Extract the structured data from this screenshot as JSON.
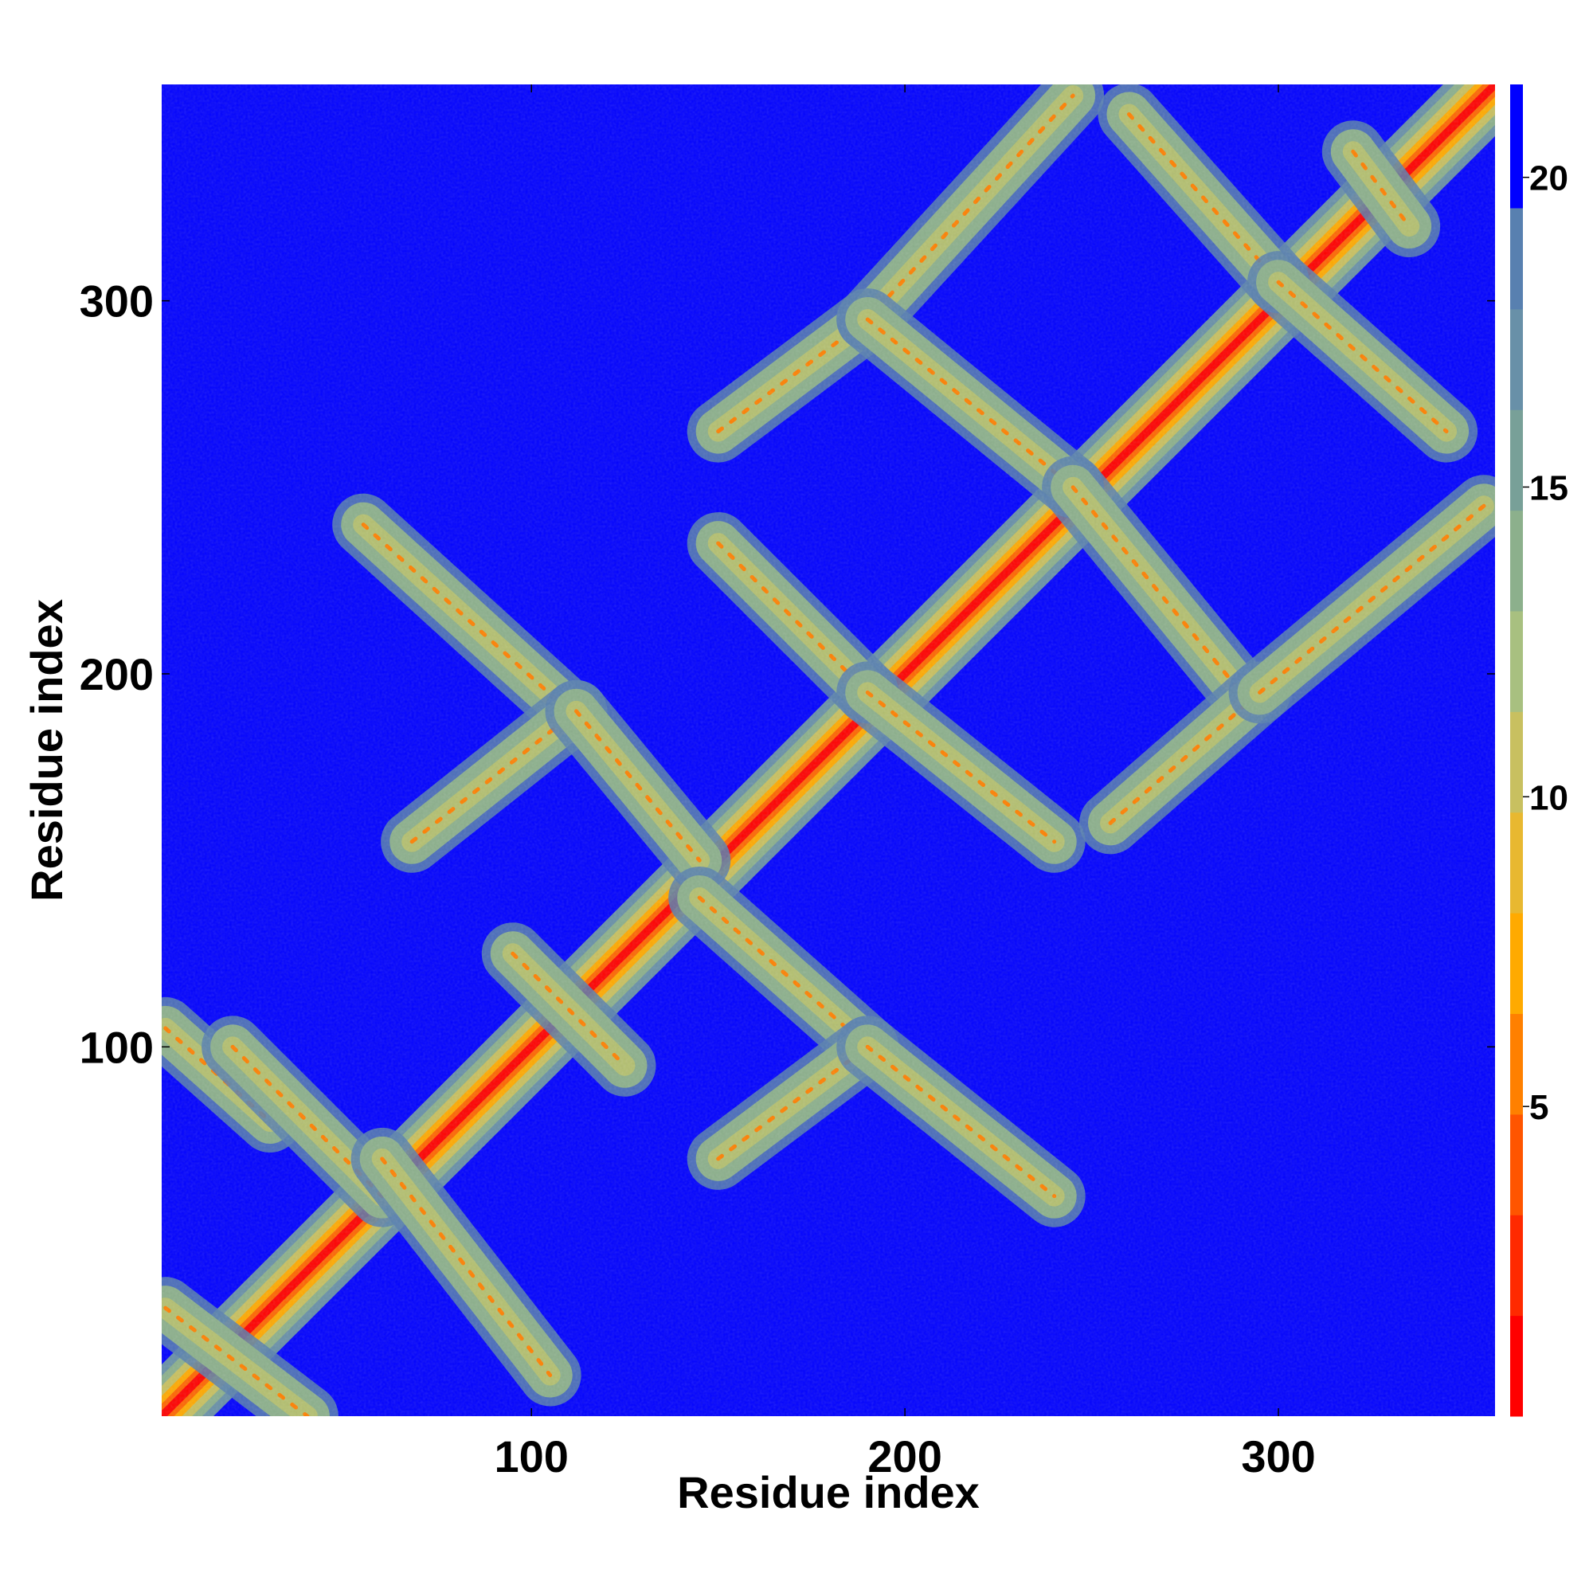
{
  "chart_data": {
    "type": "heatmap",
    "title": "",
    "xlabel": "Residue index",
    "ylabel": "Residue index",
    "xlim": [
      1,
      358
    ],
    "ylim": [
      1,
      358
    ],
    "x_ticks": [
      "100",
      "200",
      "300"
    ],
    "y_ticks": [
      "100",
      "200",
      "300"
    ],
    "colorbar": {
      "range": [
        0,
        21.5
      ],
      "ticks": [
        "5",
        "10",
        "15",
        "20"
      ],
      "colors": [
        "#ff0000",
        "#ff2a00",
        "#ff5500",
        "#ff8000",
        "#ffaa00",
        "#e8b830",
        "#c8c060",
        "#a8c080",
        "#8cb08c",
        "#78a098",
        "#6890a8",
        "#5880b0",
        "#0000ff"
      ]
    },
    "features": [
      {
        "kind": "diagonal",
        "from": [
          1,
          1
        ],
        "to": [
          358,
          358
        ]
      },
      {
        "kind": "anti-band",
        "from": [
          2,
          30
        ],
        "to": [
          40,
          1
        ]
      },
      {
        "kind": "band",
        "from": [
          2,
          105
        ],
        "to": [
          30,
          80
        ]
      },
      {
        "kind": "anti-band",
        "from": [
          20,
          100
        ],
        "to": [
          60,
          60
        ]
      },
      {
        "kind": "anti-band",
        "from": [
          60,
          70
        ],
        "to": [
          105,
          12
        ]
      },
      {
        "kind": "anti-band",
        "from": [
          55,
          240
        ],
        "to": [
          110,
          190
        ]
      },
      {
        "kind": "band",
        "from": [
          68,
          155
        ],
        "to": [
          112,
          190
        ]
      },
      {
        "kind": "anti-band",
        "from": [
          112,
          190
        ],
        "to": [
          145,
          150
        ]
      },
      {
        "kind": "band",
        "from": [
          95,
          125
        ],
        "to": [
          125,
          95
        ]
      },
      {
        "kind": "anti-band",
        "from": [
          145,
          140
        ],
        "to": [
          190,
          100
        ]
      },
      {
        "kind": "band",
        "from": [
          150,
          70
        ],
        "to": [
          190,
          100
        ]
      },
      {
        "kind": "anti-band",
        "from": [
          190,
          100
        ],
        "to": [
          240,
          60
        ]
      },
      {
        "kind": "anti-band",
        "from": [
          150,
          235
        ],
        "to": [
          190,
          195
        ]
      },
      {
        "kind": "anti-band",
        "from": [
          190,
          195
        ],
        "to": [
          240,
          155
        ]
      },
      {
        "kind": "band",
        "from": [
          150,
          265
        ],
        "to": [
          190,
          295
        ]
      },
      {
        "kind": "band",
        "from": [
          190,
          295
        ],
        "to": [
          245,
          355
        ]
      },
      {
        "kind": "anti-band",
        "from": [
          190,
          295
        ],
        "to": [
          245,
          250
        ]
      },
      {
        "kind": "anti-band",
        "from": [
          245,
          250
        ],
        "to": [
          290,
          195
        ]
      },
      {
        "kind": "band",
        "from": [
          255,
          160
        ],
        "to": [
          295,
          195
        ]
      },
      {
        "kind": "band",
        "from": [
          295,
          195
        ],
        "to": [
          355,
          245
        ]
      },
      {
        "kind": "anti-band",
        "from": [
          260,
          350
        ],
        "to": [
          300,
          305
        ]
      },
      {
        "kind": "anti-band",
        "from": [
          300,
          305
        ],
        "to": [
          345,
          265
        ]
      },
      {
        "kind": "band",
        "from": [
          320,
          340
        ],
        "to": [
          335,
          320
        ]
      }
    ]
  }
}
